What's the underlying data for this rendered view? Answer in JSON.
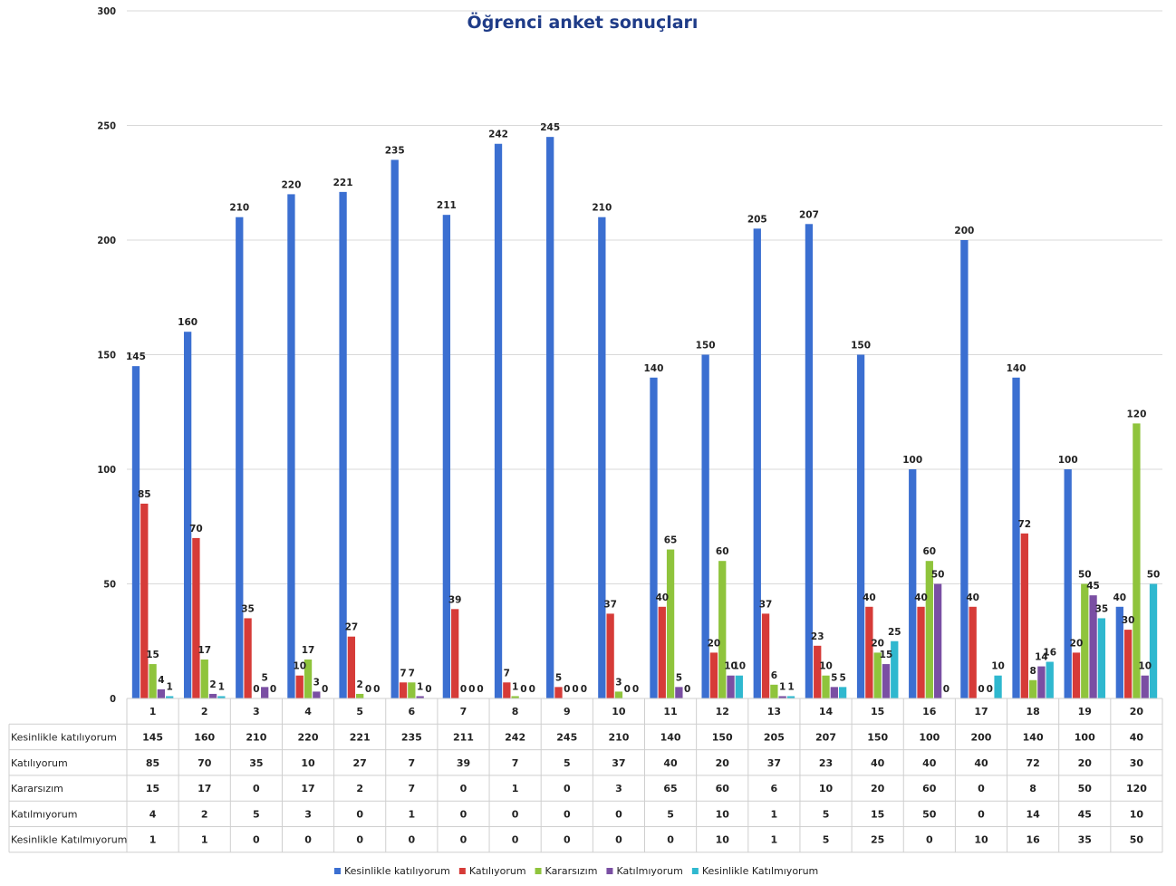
{
  "chart_data": {
    "type": "bar",
    "title": "Öğrenci anket sonuçları",
    "categories": [
      "1",
      "2",
      "3",
      "4",
      "5",
      "6",
      "7",
      "8",
      "9",
      "10",
      "11",
      "12",
      "13",
      "14",
      "15",
      "16",
      "17",
      "18",
      "19",
      "20"
    ],
    "ylim": [
      0,
      300
    ],
    "yticks": [
      0,
      50,
      100,
      150,
      200,
      250,
      300
    ],
    "grid": true,
    "legend_position": "bottom",
    "data_table": true,
    "series": [
      {
        "name": "Kesinlikle katılıyorum",
        "color": "#3b6fd1",
        "values": [
          145,
          160,
          210,
          220,
          221,
          235,
          211,
          242,
          245,
          210,
          140,
          150,
          205,
          207,
          150,
          100,
          200,
          140,
          100,
          40
        ]
      },
      {
        "name": "Katılıyorum",
        "color": "#d63b38",
        "values": [
          85,
          70,
          35,
          10,
          27,
          7,
          39,
          7,
          5,
          37,
          40,
          20,
          37,
          23,
          40,
          40,
          40,
          72,
          20,
          30
        ]
      },
      {
        "name": "Kararsızım",
        "color": "#8fc43c",
        "values": [
          15,
          17,
          0,
          17,
          2,
          7,
          0,
          1,
          0,
          3,
          65,
          60,
          6,
          10,
          20,
          60,
          0,
          8,
          50,
          120
        ]
      },
      {
        "name": "Katılmıyorum",
        "color": "#7a4fa3",
        "values": [
          4,
          2,
          5,
          3,
          0,
          1,
          0,
          0,
          0,
          0,
          5,
          10,
          1,
          5,
          15,
          50,
          0,
          14,
          45,
          10
        ]
      },
      {
        "name": "Kesinlikle Katılmıyorum",
        "color": "#2fb8cf",
        "values": [
          1,
          1,
          0,
          0,
          0,
          0,
          0,
          0,
          0,
          0,
          0,
          10,
          1,
          5,
          25,
          0,
          10,
          16,
          35,
          50
        ]
      }
    ]
  }
}
